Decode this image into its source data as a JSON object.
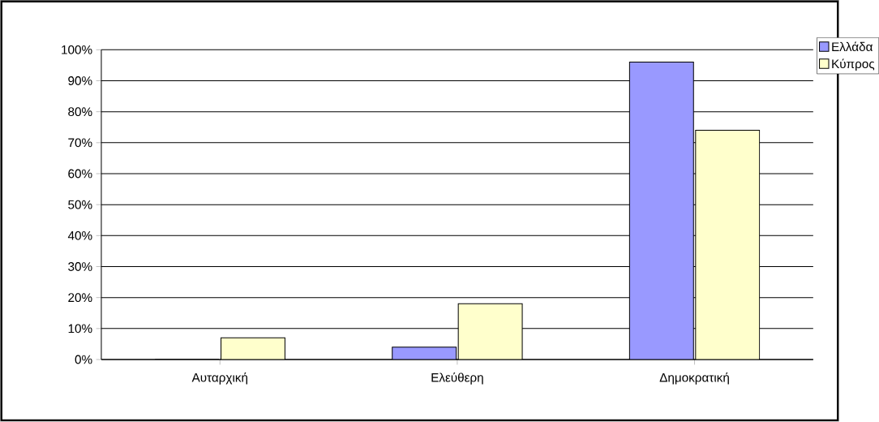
{
  "chart_data": {
    "type": "bar",
    "categories": [
      "Αυταρχική",
      "Ελεύθερη",
      "Δημοκρατική"
    ],
    "series": [
      {
        "name": "Ελλάδα",
        "color": "#9999ff",
        "values": [
          0,
          4,
          96
        ]
      },
      {
        "name": "Κύπρος",
        "color": "#ffffcc",
        "values": [
          7,
          18,
          74
        ]
      }
    ],
    "ylim": [
      0,
      100
    ],
    "yticks": [
      {
        "value": 0,
        "label": "0%"
      },
      {
        "value": 10,
        "label": "10%"
      },
      {
        "value": 20,
        "label": "20%"
      },
      {
        "value": 30,
        "label": "30%"
      },
      {
        "value": 40,
        "label": "40%"
      },
      {
        "value": 50,
        "label": "50%"
      },
      {
        "value": 60,
        "label": "60%"
      },
      {
        "value": 70,
        "label": "70%"
      },
      {
        "value": 80,
        "label": "80%"
      },
      {
        "value": 90,
        "label": "90%"
      },
      {
        "value": 100,
        "label": "100%"
      }
    ],
    "grid": "y",
    "legend": "top right"
  }
}
